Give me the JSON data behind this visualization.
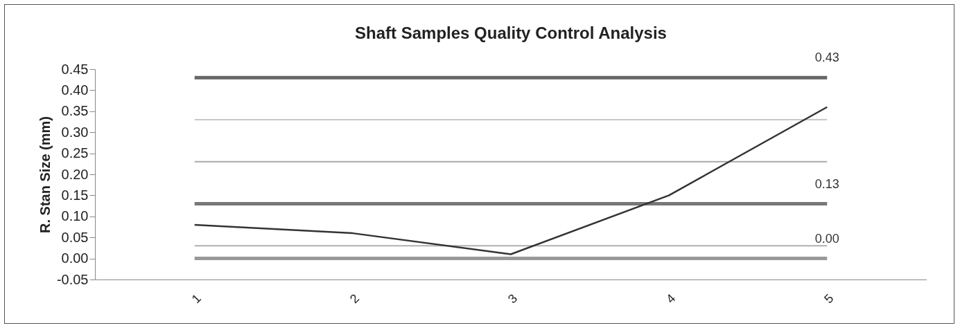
{
  "chart_data": {
    "type": "line",
    "title": "Shaft Samples Quality Control Analysis",
    "ylabel": "R. Stan Size (mm)",
    "categories": [
      "1",
      "2",
      "3",
      "4",
      "5"
    ],
    "series": [
      {
        "color": "#333333",
        "values": [
          0.08,
          0.06,
          0.01,
          0.15,
          0.36
        ]
      }
    ],
    "ylim": [
      -0.05,
      0.45
    ],
    "yticks": [
      {
        "value": -0.05,
        "label": "-0.05"
      },
      {
        "value": 0,
        "label": "0.00"
      },
      {
        "value": 0.05,
        "label": "0.05"
      },
      {
        "value": 0.1,
        "label": "0.10"
      },
      {
        "value": 0.15,
        "label": "0.15"
      },
      {
        "value": 0.2,
        "label": "0.20"
      },
      {
        "value": 0.25,
        "label": "0.25"
      },
      {
        "value": 0.3,
        "label": "0.30"
      },
      {
        "value": 0.35,
        "label": "0.35"
      },
      {
        "value": 0.4,
        "label": "0.40"
      },
      {
        "value": 0.45,
        "label": "0.45"
      }
    ],
    "ref_lines": [
      {
        "axis": "y",
        "value": 0.43,
        "label": "0.43",
        "color": "#666666"
      },
      {
        "axis": "y",
        "value": 0.33,
        "color": "#c8c8c8"
      },
      {
        "axis": "y",
        "value": 0.23,
        "color": "#a8a8a8"
      },
      {
        "axis": "y",
        "value": 0.13,
        "label": "0.13",
        "color": "#777777"
      },
      {
        "axis": "y",
        "value": 0.03,
        "color": "#b0b0b0"
      },
      {
        "axis": "y",
        "value": 0.0,
        "label": "0.00",
        "color": "#999999"
      }
    ],
    "grid": false,
    "marker": "none",
    "line_style": "solid"
  }
}
